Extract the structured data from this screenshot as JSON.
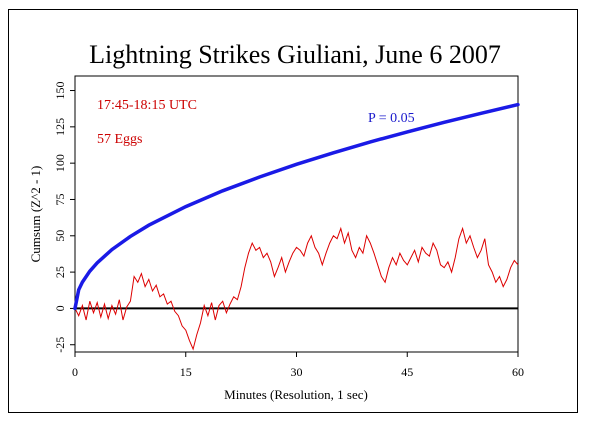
{
  "chart_data": {
    "type": "line",
    "title": "Lightning Strikes Giuliani, June 6 2007",
    "xlabel": "Minutes (Resolution, 1 sec)",
    "ylabel": "Cumsum (Z^2 - 1)",
    "xlim": [
      0,
      60
    ],
    "ylim": [
      -30,
      160
    ],
    "xticks": [
      0,
      15,
      30,
      45,
      60
    ],
    "yticks": [
      -25,
      0,
      25,
      50,
      75,
      100,
      125,
      150
    ],
    "grid": false,
    "annotations": [
      {
        "text": "17:45-18:15 UTC",
        "color": "#cc0000"
      },
      {
        "text": "57 Eggs",
        "color": "#cc0000"
      },
      {
        "text": "P = 0.05",
        "color": "#1a1acc"
      }
    ],
    "colors": {
      "cumsum": "#dd0000",
      "p_envelope": "#1a1ae6",
      "zero_line": "#000000"
    },
    "series": [
      {
        "role": "p-envelope",
        "x": [
          0,
          0.5,
          1,
          2,
          3,
          5,
          7.5,
          10,
          15,
          20,
          25,
          30,
          35,
          40,
          45,
          50,
          55,
          60
        ],
        "y": [
          0,
          12.8,
          18.1,
          25.6,
          31.4,
          40.5,
          49.6,
          57.3,
          70.1,
          81,
          90.5,
          99.2,
          107.1,
          114.6,
          121.5,
          128.1,
          134.3,
          140.3
        ]
      },
      {
        "role": "cumsum",
        "x": [
          0,
          0.5,
          1,
          1.5,
          2,
          2.5,
          3,
          3.5,
          4,
          4.5,
          5,
          5.5,
          6,
          6.5,
          7,
          7.5,
          8,
          8.5,
          9,
          9.5,
          10,
          10.5,
          11,
          11.5,
          12,
          12.5,
          13,
          13.5,
          14,
          14.5,
          15,
          15.5,
          16,
          16.5,
          17,
          17.5,
          18,
          18.5,
          19,
          19.5,
          20,
          20.5,
          21,
          21.5,
          22,
          22.5,
          23,
          23.5,
          24,
          24.5,
          25,
          25.5,
          26,
          26.5,
          27,
          27.5,
          28,
          28.5,
          29,
          29.5,
          30,
          30.5,
          31,
          31.5,
          32,
          32.5,
          33,
          33.5,
          34,
          34.5,
          35,
          35.5,
          36,
          36.5,
          37,
          37.5,
          38,
          38.5,
          39,
          39.5,
          40,
          40.5,
          41,
          41.5,
          42,
          42.5,
          43,
          43.5,
          44,
          44.5,
          45,
          45.5,
          46,
          46.5,
          47,
          47.5,
          48,
          48.5,
          49,
          49.5,
          50,
          50.5,
          51,
          51.5,
          52,
          52.5,
          53,
          53.5,
          54,
          54.5,
          55,
          55.5,
          56,
          56.5,
          57,
          57.5,
          58,
          58.5,
          59,
          59.5,
          60
        ],
        "y": [
          0,
          -5,
          2,
          -8,
          5,
          -3,
          4,
          -6,
          3,
          -7,
          2,
          -4,
          6,
          -8,
          1,
          5,
          22,
          18,
          24,
          15,
          20,
          12,
          16,
          8,
          10,
          3,
          5,
          -2,
          -5,
          -12,
          -15,
          -22,
          -28,
          -18,
          -10,
          2,
          -5,
          4,
          -8,
          2,
          5,
          -3,
          3,
          8,
          6,
          15,
          28,
          38,
          45,
          40,
          42,
          35,
          38,
          32,
          22,
          28,
          35,
          25,
          32,
          38,
          42,
          40,
          36,
          45,
          50,
          42,
          38,
          30,
          38,
          45,
          50,
          48,
          55,
          45,
          52,
          40,
          35,
          42,
          38,
          50,
          45,
          38,
          30,
          22,
          18,
          28,
          35,
          30,
          38,
          33,
          30,
          35,
          40,
          32,
          42,
          38,
          36,
          45,
          40,
          30,
          28,
          32,
          25,
          35,
          48,
          55,
          45,
          50,
          42,
          35,
          40,
          48,
          30,
          25,
          18,
          22,
          15,
          20,
          28,
          33,
          30
        ]
      }
    ]
  }
}
